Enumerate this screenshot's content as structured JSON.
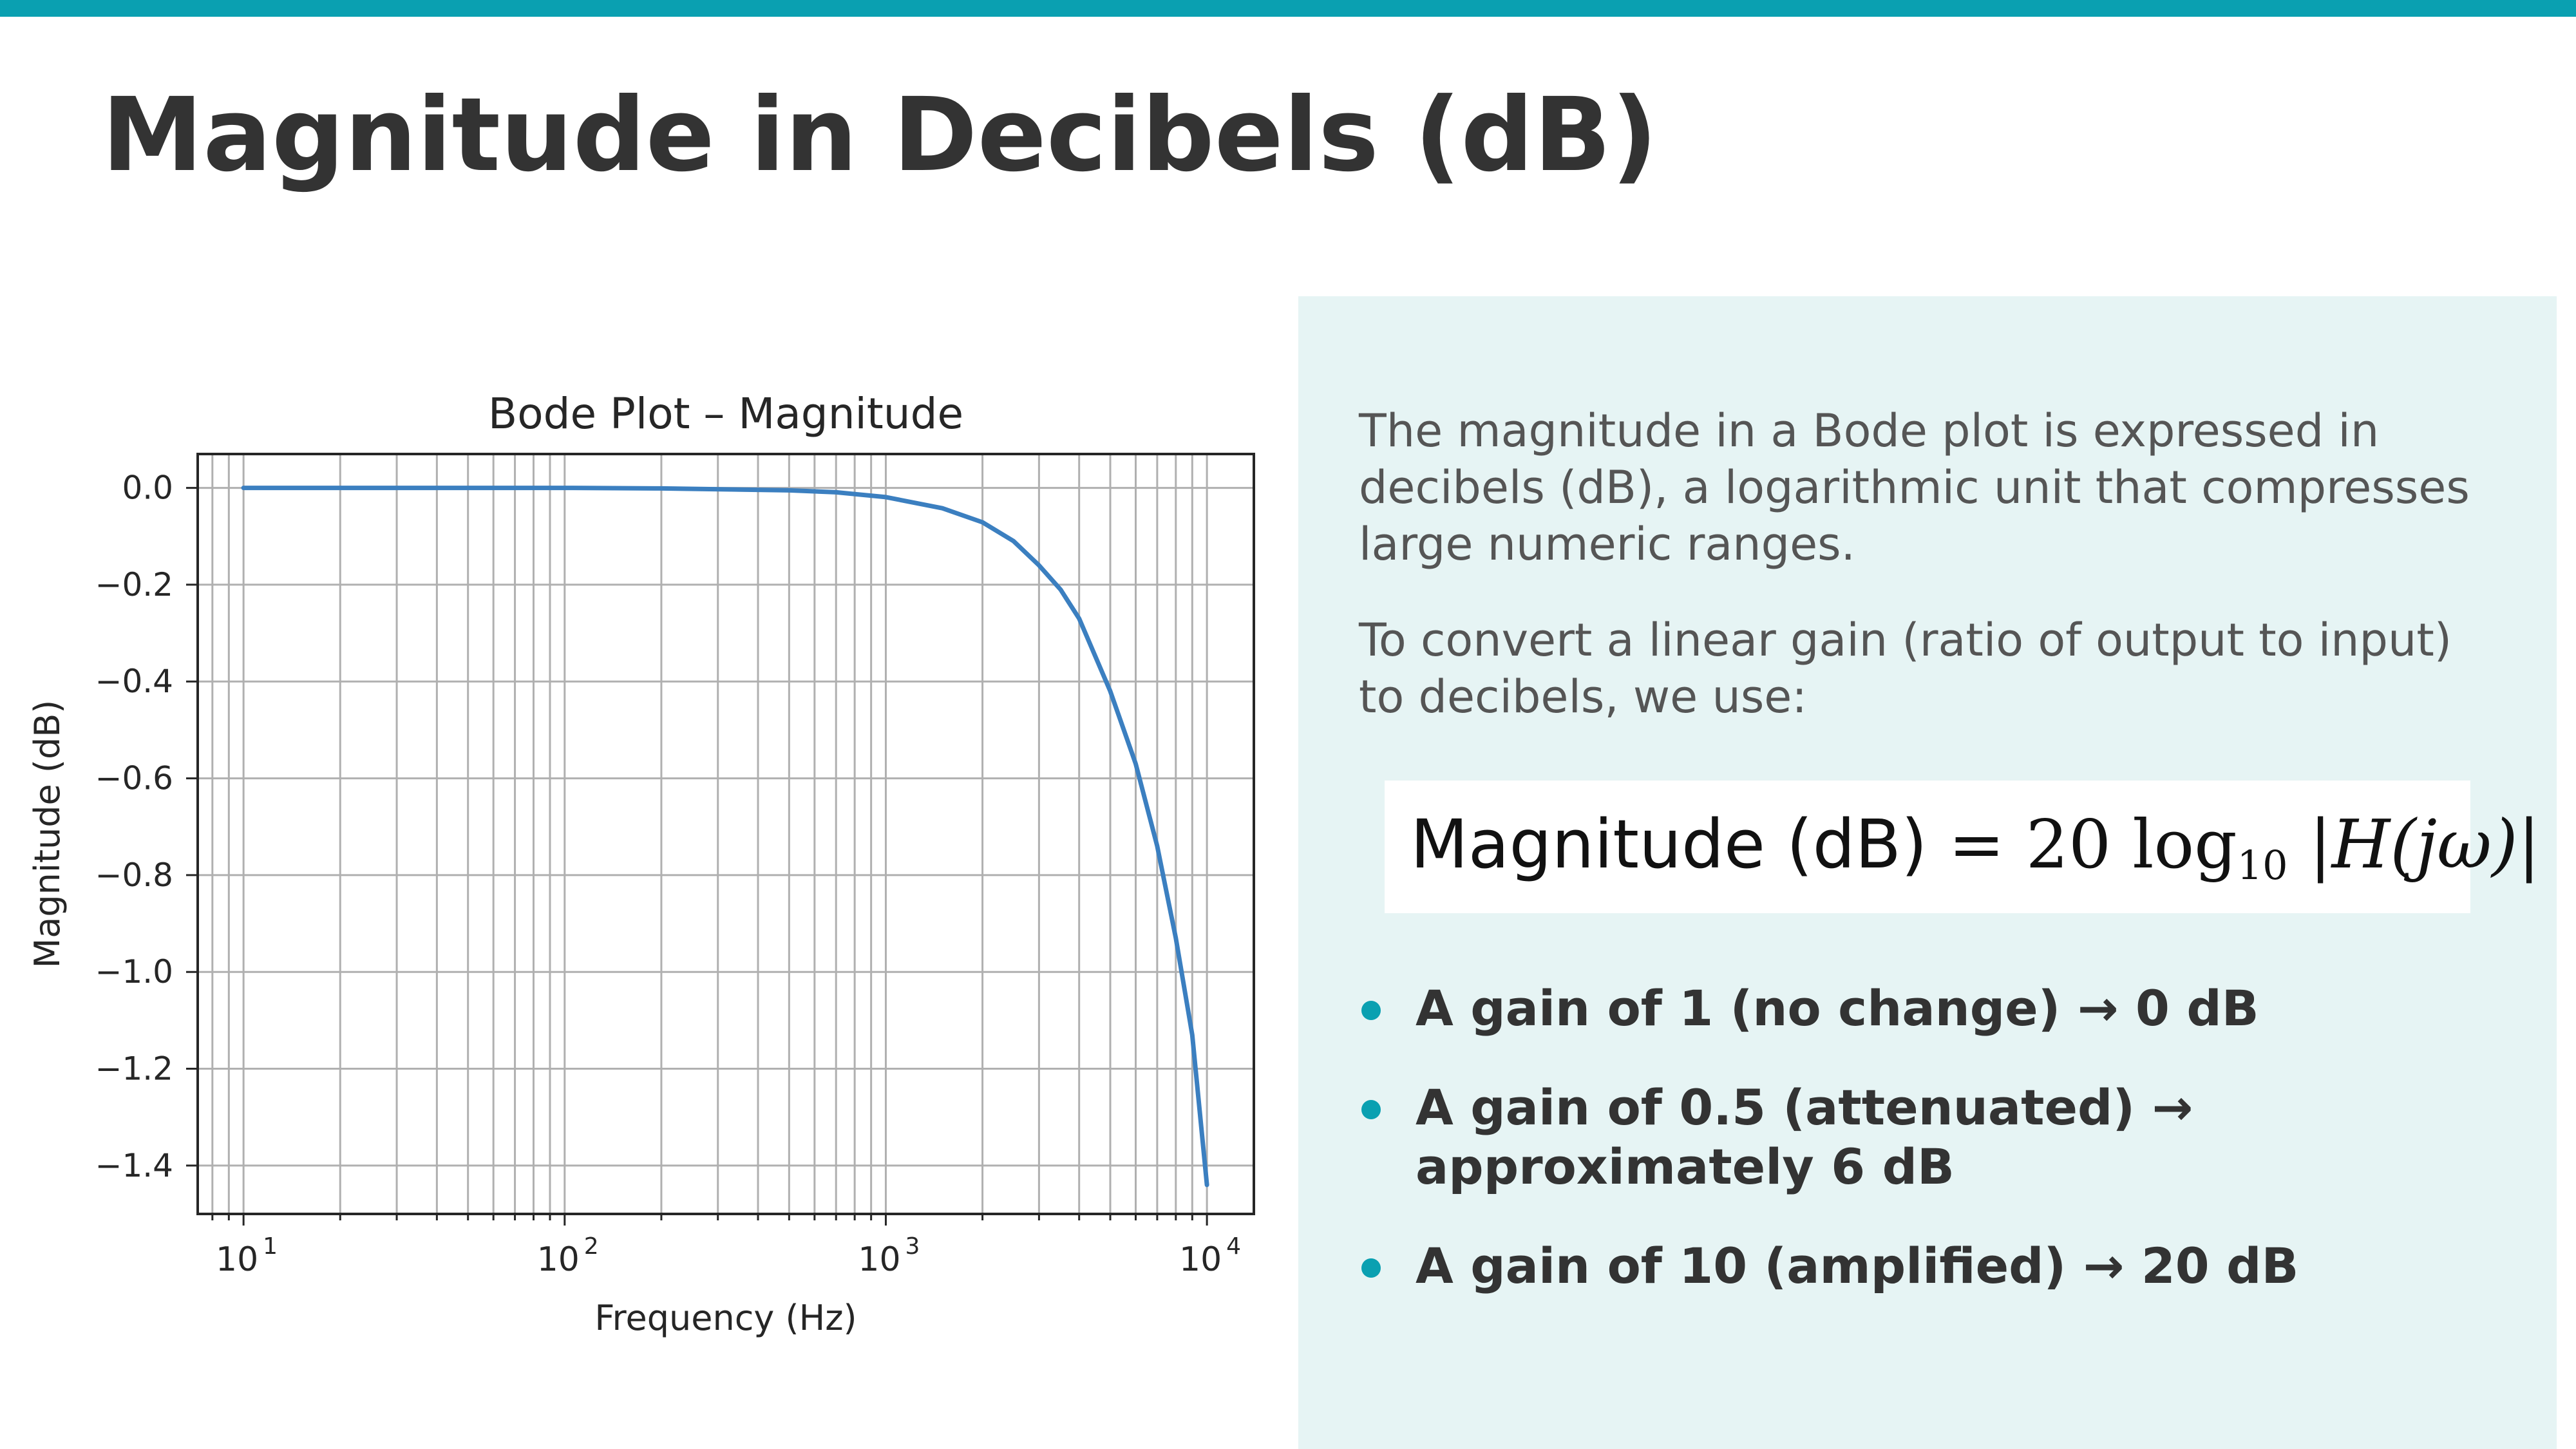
{
  "colors": {
    "accent": "#0aa0b1",
    "panel_bg": "#e6f4f4",
    "line": "#3b7fc0",
    "title": "#333333"
  },
  "slide": {
    "title": "Magnitude in Decibels (dB)"
  },
  "panel": {
    "paragraph1": "The magnitude in a Bode plot is expressed in decibels (dB), a logarithmic unit that compresses large numeric ranges.",
    "paragraph2": "To convert a linear gain (ratio of output to input) to decibels, we use:",
    "formula": {
      "label": "Magnitude (dB)",
      "rhs_prefix": " = 20 log",
      "rhs_sub": "10",
      "rhs_suffix": " |H(jω)|"
    },
    "bullets": [
      "A gain of 1 (no change) → 0 dB",
      "A gain of 0.5 (attenuated) → approximately 6 dB",
      "A gain of 10 (amplified) → 20 dB"
    ]
  },
  "chart_data": {
    "type": "line",
    "title": "Bode Plot – Magnitude",
    "xlabel": "Frequency (Hz)",
    "ylabel": "Magnitude (dB)",
    "x_scale": "log",
    "xlim": [
      7.2,
      14000
    ],
    "ylim": [
      -1.5,
      0.07
    ],
    "grid": true,
    "grid_minor_x": true,
    "x_tick_labels": [
      {
        "value": 10,
        "base": "10",
        "exp": "1"
      },
      {
        "value": 100,
        "base": "10",
        "exp": "2"
      },
      {
        "value": 1000,
        "base": "10",
        "exp": "3"
      },
      {
        "value": 10000,
        "base": "10",
        "exp": "4"
      }
    ],
    "y_ticks": [
      0.0,
      -0.2,
      -0.4,
      -0.6,
      -0.8,
      -1.0,
      -1.2,
      -1.4
    ],
    "y_tick_labels": [
      "0.0",
      "−0.2",
      "−0.4",
      "−0.6",
      "−0.8",
      "−1.0",
      "−1.2",
      "−1.4"
    ],
    "series": [
      {
        "x": [
          10,
          20,
          50,
          100,
          200,
          500,
          700,
          1000,
          1500,
          2000,
          2500,
          3000,
          3500,
          4000,
          5000,
          6000,
          7000,
          8000,
          9000,
          10000
        ],
        "y": [
          0.0,
          0.0,
          0.0,
          0.0,
          -0.001,
          -0.005,
          -0.009,
          -0.019,
          -0.042,
          -0.071,
          -0.11,
          -0.16,
          -0.21,
          -0.27,
          -0.42,
          -0.57,
          -0.74,
          -0.93,
          -1.13,
          -1.44
        ]
      }
    ]
  }
}
